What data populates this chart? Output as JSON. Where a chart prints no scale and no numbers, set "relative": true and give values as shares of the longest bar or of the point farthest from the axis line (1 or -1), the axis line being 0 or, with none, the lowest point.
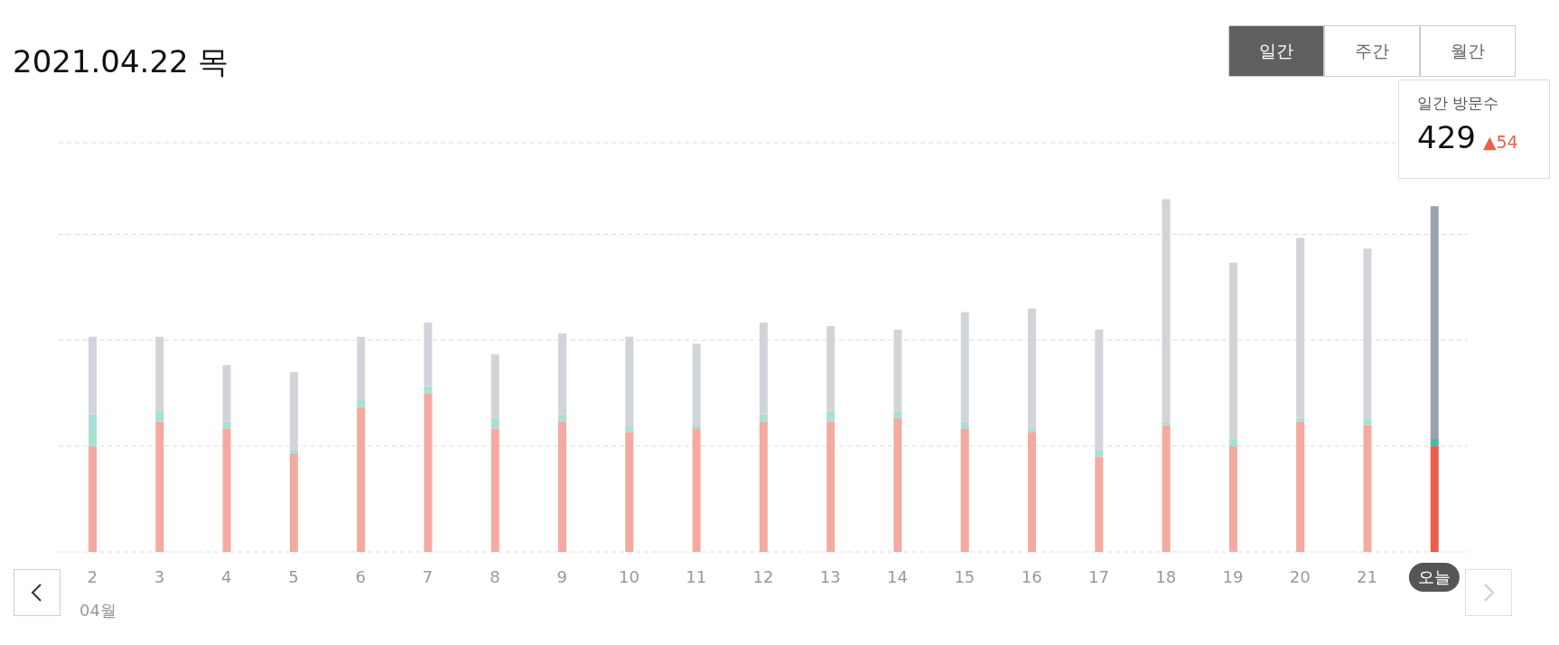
{
  "chart_data": {
    "type": "bar",
    "title": "2021.04.22 목",
    "stacked": true,
    "relative": true,
    "grid": "y",
    "categories": [
      "2",
      "3",
      "4",
      "5",
      "6",
      "7",
      "8",
      "9",
      "10",
      "11",
      "12",
      "13",
      "14",
      "15",
      "16",
      "17",
      "18",
      "19",
      "20",
      "21",
      "오늘"
    ],
    "series": [
      {
        "colors": [
          "#f4aaa0",
          "#f4aaa0",
          "#f4aaa0",
          "#f4aaa0",
          "#f4aaa0",
          "#f4aaa0",
          "#f4aaa0",
          "#f4aaa0",
          "#f4aaa0",
          "#f4aaa0",
          "#f4aaa0",
          "#f4aaa0",
          "#f4aaa0",
          "#f4aaa0",
          "#f4aaa0",
          "#f4aaa0",
          "#f4aaa0",
          "#f4aaa0",
          "#f4aaa0",
          "#f4aaa0",
          "#e8604c"
        ],
        "values": [
          0.3,
          0.37,
          0.35,
          0.28,
          0.41,
          0.45,
          0.35,
          0.37,
          0.34,
          0.35,
          0.37,
          0.37,
          0.38,
          0.35,
          0.34,
          0.27,
          0.36,
          0.3,
          0.37,
          0.36,
          0.3
        ]
      },
      {
        "colors": [
          "#a8e0d3",
          "#a8e0d3",
          "#a8e0d3",
          "#a8e0d3",
          "#a8e0d3",
          "#a8e0d3",
          "#a8e0d3",
          "#a8e0d3",
          "#a8e0d3",
          "#a8e0d3",
          "#a8e0d3",
          "#a8e0d3",
          "#a8e0d3",
          "#a8e0d3",
          "#a8e0d3",
          "#a8e0d3",
          "#a8e0d3",
          "#a8e0d3",
          "#a8e0d3",
          "#a8e0d3",
          "#3dbfa5"
        ],
        "values": [
          0.09,
          0.03,
          0.02,
          0.01,
          0.02,
          0.02,
          0.03,
          0.02,
          0.02,
          0.01,
          0.02,
          0.03,
          0.02,
          0.02,
          0.01,
          0.02,
          0.01,
          0.02,
          0.01,
          0.02,
          0.02
        ]
      },
      {
        "colors": [
          "#d1d4d8",
          "#d1d4d8",
          "#d1d4d8",
          "#d1d4d8",
          "#d1d4d8",
          "#d1d4d8",
          "#d1d4d8",
          "#d1d4d8",
          "#d1d4d8",
          "#d1d4d8",
          "#d1d4d8",
          "#d1d4d8",
          "#d1d4d8",
          "#d1d4d8",
          "#d1d4d8",
          "#d1d4d8",
          "#d1d4d8",
          "#d1d4d8",
          "#d1d4d8",
          "#d1d4d8",
          "#9aa3ad"
        ],
        "values": [
          0.22,
          0.21,
          0.16,
          0.22,
          0.18,
          0.18,
          0.18,
          0.23,
          0.25,
          0.23,
          0.26,
          0.24,
          0.23,
          0.31,
          0.34,
          0.34,
          0.63,
          0.5,
          0.51,
          0.48,
          0.66
        ]
      }
    ],
    "annotations": [
      "일간",
      "주간",
      "월간",
      "일간 방문수",
      "429",
      "▲54",
      "04월"
    ]
  }
}
